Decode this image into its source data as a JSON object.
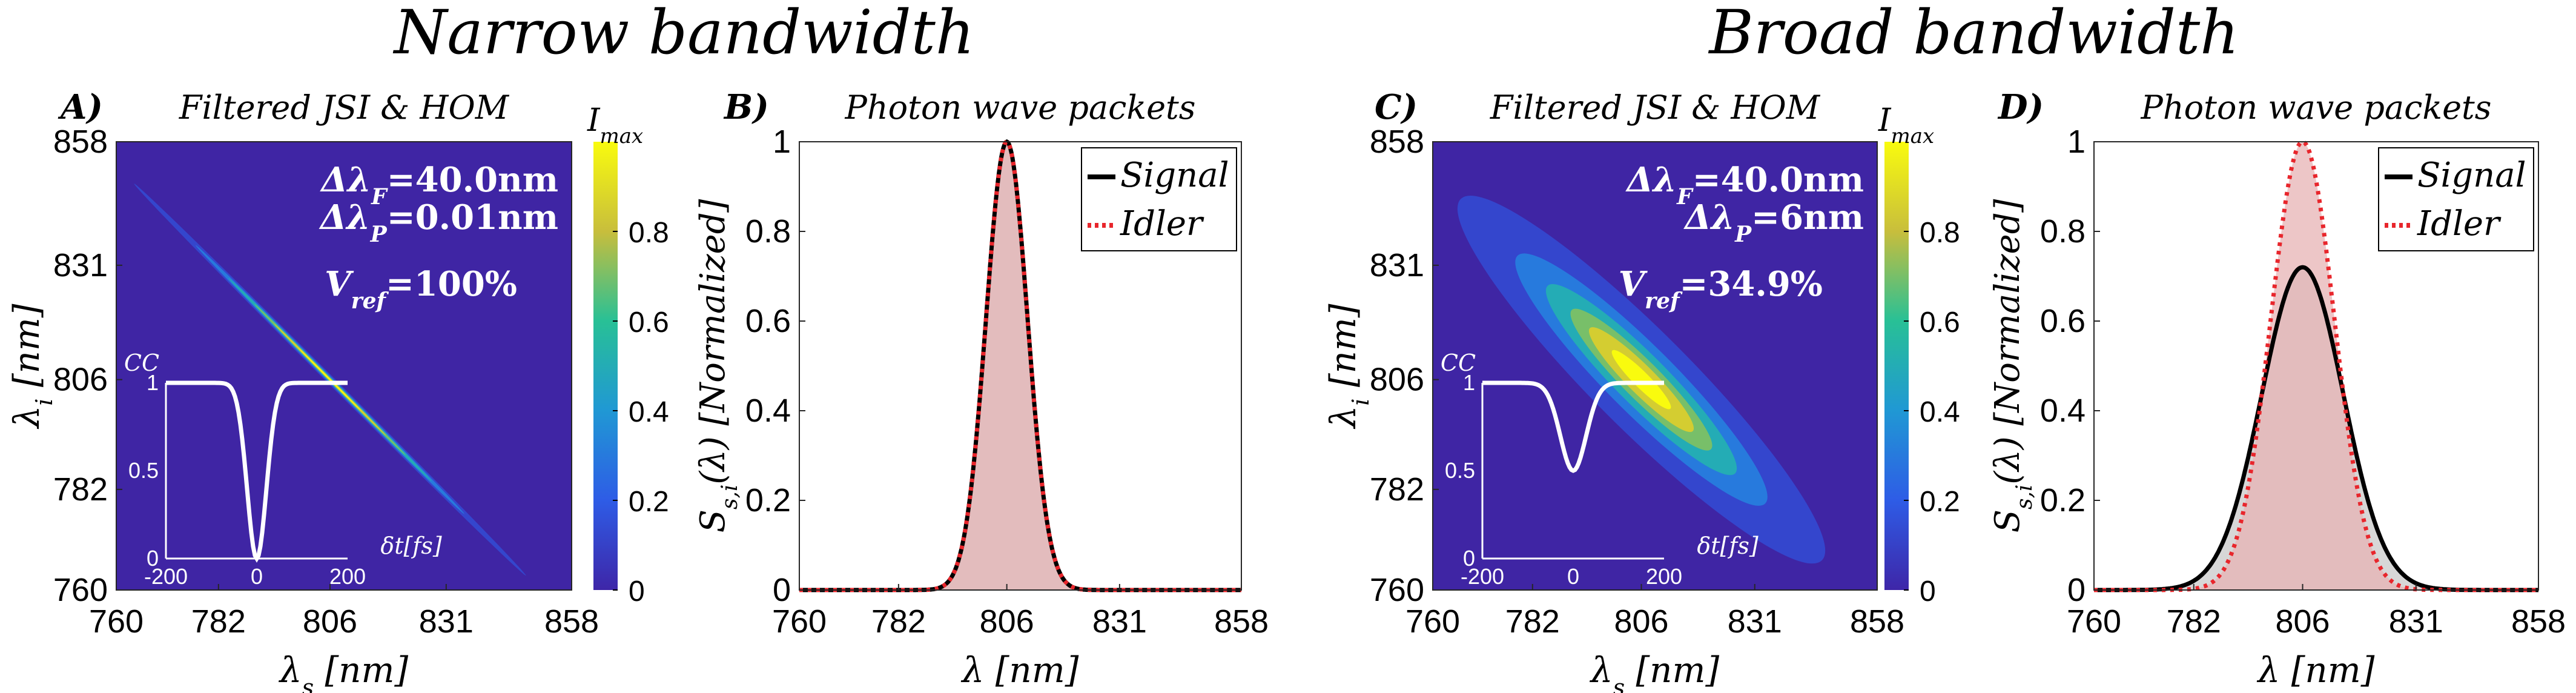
{
  "section_titles": [
    "Narrow bandwidth",
    "Broad bandwidth"
  ],
  "colors": {
    "jsi_background": "#3f25a4",
    "signal": "#000000",
    "idler": "#e8262c",
    "idler_fill": "#e7b3b4",
    "signal_fill": "#c9c9c9"
  },
  "chart_data": [
    {
      "id": "A",
      "type": "heatmap",
      "panel_label": "A)",
      "title": "Filtered JSI & HOM",
      "xlabel": "λs [nm]",
      "ylabel": "λi [nm]",
      "x_ticks": [
        "760",
        "782",
        "806",
        "831",
        "858"
      ],
      "y_ticks": [
        "760",
        "782",
        "806",
        "831",
        "858"
      ],
      "xlim": [
        760,
        858
      ],
      "ylim": [
        760,
        858
      ],
      "annotations": {
        "filter": "ΔλF=40.0nm",
        "pump": "ΔλP=0.01nm",
        "visibility": "Vref=100%"
      },
      "jsi": {
        "center_nm": [
          806,
          806
        ],
        "width_along_nm": 36,
        "width_across_nm": 0.5,
        "peak": 1.0
      },
      "colorbar": {
        "label": "Imax",
        "ticks": [
          "0",
          "0.2",
          "0.4",
          "0.6",
          "0.8"
        ],
        "range": [
          0,
          1
        ]
      },
      "inset": {
        "ylabel": "CC",
        "xlabel": "δt[fs]",
        "x_ticks": [
          "-200",
          "0",
          "200"
        ],
        "y_ticks": [
          "0",
          "0.5",
          "1"
        ],
        "xlim": [
          -200,
          200
        ],
        "ylim": [
          0,
          1
        ],
        "dip_center_fs": 0,
        "dip_min": 0.0,
        "dip_width_fs": 30
      }
    },
    {
      "id": "B",
      "type": "area",
      "panel_label": "B)",
      "title": "Photon wave packets",
      "xlabel": "λ [nm]",
      "ylabel": "Ss,i(λ) [Normalized]",
      "x_ticks": [
        "760",
        "782",
        "806",
        "831",
        "858"
      ],
      "y_ticks": [
        "0",
        "0.2",
        "0.4",
        "0.6",
        "0.8",
        "1"
      ],
      "xlim": [
        760,
        858
      ],
      "ylim": [
        0,
        1
      ],
      "legend": {
        "position": "top-right",
        "entries": [
          "Signal",
          "Idler"
        ]
      },
      "series": [
        {
          "name": "Signal",
          "center_nm": 806,
          "sigma_nm": 4.6,
          "peak": 1.0
        },
        {
          "name": "Idler",
          "center_nm": 806,
          "sigma_nm": 4.6,
          "peak": 1.0
        }
      ]
    },
    {
      "id": "C",
      "type": "heatmap",
      "panel_label": "C)",
      "title": "Filtered JSI & HOM",
      "xlabel": "λs [nm]",
      "ylabel": "λi [nm]",
      "x_ticks": [
        "760",
        "782",
        "806",
        "831",
        "858"
      ],
      "y_ticks": [
        "760",
        "782",
        "806",
        "831",
        "858"
      ],
      "xlim": [
        760,
        858
      ],
      "ylim": [
        760,
        858
      ],
      "annotations": {
        "filter": "ΔλF=40.0nm",
        "pump": "ΔλP=6nm",
        "visibility": "Vref=34.9%"
      },
      "jsi": {
        "center_nm": [
          806,
          806
        ],
        "width_along_nm": 34,
        "width_across_nm": 6.5,
        "peak": 1.0
      },
      "colorbar": {
        "label": "Imax",
        "ticks": [
          "0",
          "0.2",
          "0.4",
          "0.6",
          "0.8"
        ],
        "range": [
          0,
          1
        ]
      },
      "inset": {
        "ylabel": "CC",
        "xlabel": "δt[fs]",
        "x_ticks": [
          "-200",
          "0",
          "200"
        ],
        "y_ticks": [
          "0",
          "0.5",
          "1"
        ],
        "xlim": [
          -200,
          200
        ],
        "ylim": [
          0,
          1
        ],
        "dip_center_fs": 0,
        "dip_min": 0.5,
        "dip_width_fs": 40
      }
    },
    {
      "id": "D",
      "type": "area",
      "panel_label": "D)",
      "title": "Photon wave packets",
      "xlabel": "λ [nm]",
      "ylabel": "Ss,i(λ) [Normalized]",
      "x_ticks": [
        "760",
        "782",
        "806",
        "831",
        "858"
      ],
      "y_ticks": [
        "0",
        "0.2",
        "0.4",
        "0.6",
        "0.8",
        "1"
      ],
      "xlim": [
        760,
        858
      ],
      "ylim": [
        0,
        1
      ],
      "legend": {
        "position": "top-right",
        "entries": [
          "Signal",
          "Idler"
        ]
      },
      "series": [
        {
          "name": "Signal",
          "center_nm": 806,
          "sigma_nm": 9.0,
          "peak": 0.72
        },
        {
          "name": "Idler",
          "center_nm": 806,
          "sigma_nm": 7.0,
          "peak": 1.0
        }
      ]
    }
  ]
}
